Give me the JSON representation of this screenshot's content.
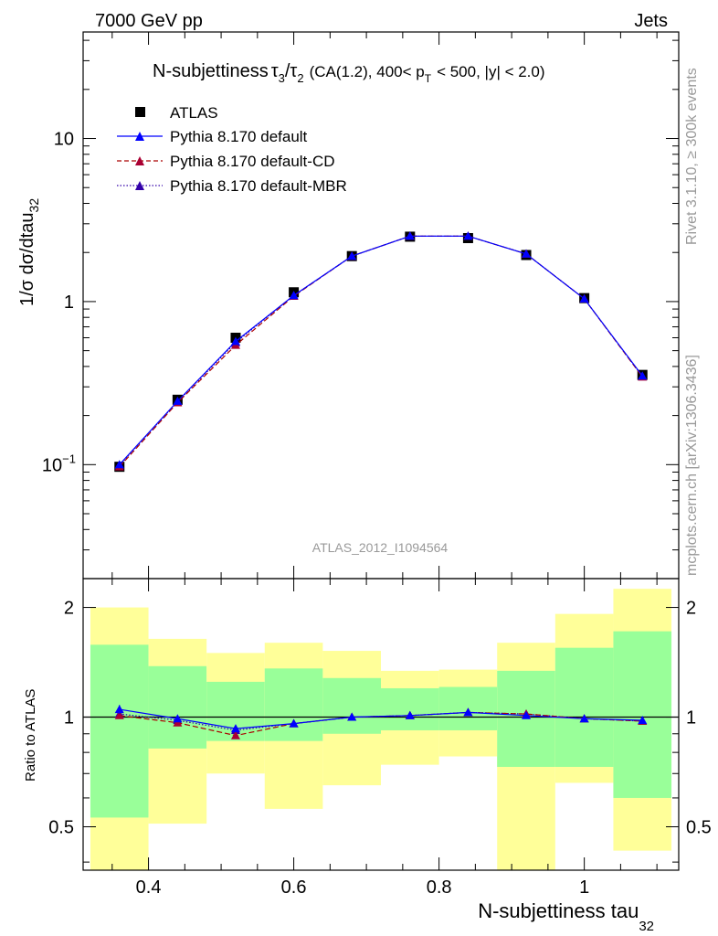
{
  "header": {
    "left_label": "7000 GeV pp",
    "right_label": "Jets"
  },
  "side_labels": {
    "rivet": "Rivet 3.1.10, ≥ 300k events",
    "mcplots": "mcplots.cern.ch [arXiv:1306.3436]"
  },
  "analysis_tag": "ATLAS_2012_I1094564",
  "chart_data": [
    {
      "type": "line",
      "panel": "main",
      "title_parts": {
        "name": "N-subjettiness",
        "tau": "τ",
        "sub3": "3",
        "slash": "/",
        "sub2": "2",
        "cuts_1": "(CA(1.2), 400< p",
        "sub_T": "T",
        "cuts_2": "< 500, |y| < 2.0)"
      },
      "ylabel": {
        "main": "1/σ dσ/dtau",
        "sub": "32"
      },
      "yscale": "log",
      "ylim": [
        0.02,
        45
      ],
      "xlim": [
        0.31,
        1.13
      ],
      "y_major_ticks": [
        {
          "value": 0.1,
          "label_base": "10",
          "label_exp": "−1"
        },
        {
          "value": 1,
          "label": "1"
        },
        {
          "value": 10,
          "label": "10"
        }
      ],
      "x": [
        0.36,
        0.44,
        0.52,
        0.6,
        0.68,
        0.76,
        0.84,
        0.92,
        1.0,
        1.08
      ],
      "series": [
        {
          "name": "ATLAS",
          "color": "#000000",
          "marker": "square",
          "linestyle": "none",
          "values": [
            0.097,
            0.25,
            0.6,
            1.14,
            1.9,
            2.5,
            2.45,
            1.93,
            1.05,
            0.355
          ]
        },
        {
          "name": "Pythia 8.170 default",
          "color": "#0000ff",
          "marker": "triangle",
          "linestyle": "solid",
          "values": [
            0.1,
            0.245,
            0.57,
            1.09,
            1.9,
            2.52,
            2.52,
            1.96,
            1.04,
            0.35
          ]
        },
        {
          "name": "Pythia 8.170 default-CD",
          "color": "#aa0000",
          "marker": "triangle",
          "linestyle": "dashed",
          "values": [
            0.097,
            0.24,
            0.54,
            1.08,
            1.9,
            2.52,
            2.52,
            1.96,
            1.04,
            0.345
          ]
        },
        {
          "name": "Pythia 8.170 default-MBR",
          "color": "#3300aa",
          "marker": "triangle",
          "linestyle": "dotted",
          "values": [
            0.099,
            0.243,
            0.56,
            1.09,
            1.9,
            2.52,
            2.52,
            1.96,
            1.04,
            0.348
          ]
        }
      ]
    },
    {
      "type": "line",
      "panel": "ratio",
      "ylabel": "Ratio to ATLAS",
      "xlabel": {
        "main": "N-subjettiness tau",
        "sub": "32"
      },
      "yscale": "log",
      "ylim": [
        0.38,
        2.4
      ],
      "xlim": [
        0.31,
        1.13
      ],
      "y_tick_labels": [
        {
          "value": 0.5,
          "label": "0.5"
        },
        {
          "value": 1,
          "label": "1"
        },
        {
          "value": 2,
          "label": "2"
        }
      ],
      "x_tick_labels": [
        {
          "value": 0.4,
          "label": "0.4"
        },
        {
          "value": 0.6,
          "label": "0.6"
        },
        {
          "value": 0.8,
          "label": "0.8"
        },
        {
          "value": 1.0,
          "label": "1"
        }
      ],
      "bin_edges": [
        0.32,
        0.4,
        0.48,
        0.56,
        0.64,
        0.72,
        0.8,
        0.88,
        0.96,
        1.04,
        1.12
      ],
      "band_inner": {
        "color": "#99ff99",
        "low": [
          0.53,
          0.82,
          0.86,
          0.86,
          0.9,
          0.92,
          0.92,
          0.73,
          0.73,
          0.6
        ],
        "high": [
          1.58,
          1.38,
          1.25,
          1.36,
          1.28,
          1.2,
          1.21,
          1.34,
          1.55,
          1.72
        ]
      },
      "band_outer": {
        "color": "#ffff99",
        "low": [
          0.3,
          0.51,
          0.7,
          0.56,
          0.65,
          0.74,
          0.78,
          0.35,
          0.66,
          0.43
        ],
        "high": [
          2.0,
          1.64,
          1.5,
          1.6,
          1.52,
          1.34,
          1.35,
          1.6,
          1.92,
          2.25
        ]
      },
      "series": [
        {
          "name": "Pythia 8.170 default",
          "color": "#0000ff",
          "linestyle": "solid",
          "values": [
            1.05,
            0.99,
            0.93,
            0.96,
            1.0,
            1.01,
            1.03,
            1.01,
            0.99,
            0.98
          ],
          "error": [
            0.03,
            0.01,
            0.01,
            0.01,
            0.01,
            0.01,
            0.01,
            0.01,
            0.01,
            0.01
          ]
        },
        {
          "name": "Pythia 8.170 default-CD",
          "color": "#aa0000",
          "linestyle": "dashed",
          "values": [
            1.01,
            0.965,
            0.89,
            0.96,
            1.0,
            1.01,
            1.03,
            1.02,
            0.99,
            0.975
          ]
        },
        {
          "name": "Pythia 8.170 default-MBR",
          "color": "#3300aa",
          "linestyle": "dotted",
          "values": [
            1.02,
            0.98,
            0.92,
            0.96,
            1.0,
            1.01,
            1.03,
            1.02,
            0.99,
            0.975
          ]
        }
      ]
    }
  ]
}
